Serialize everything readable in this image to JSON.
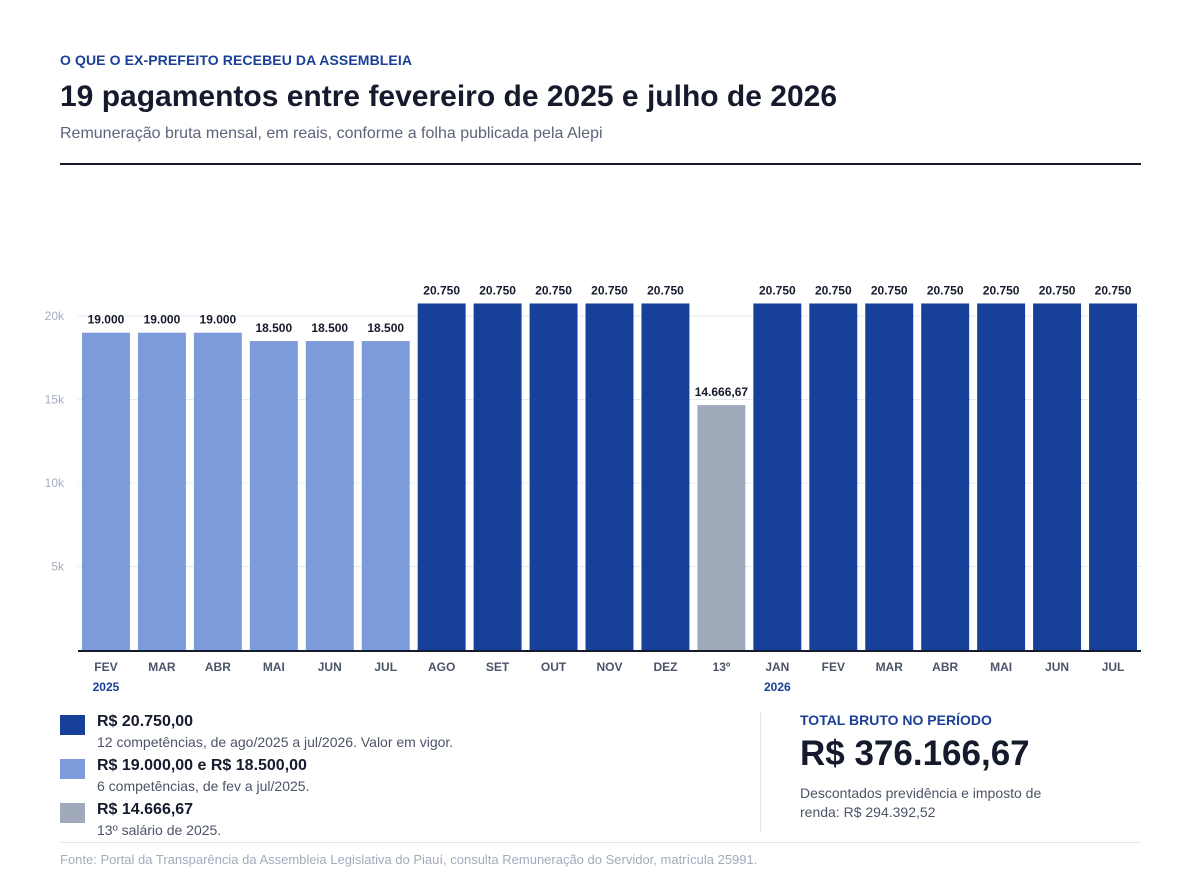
{
  "header": {
    "kicker": "O QUE O EX-PREFEITO RECEBEU DA ASSEMBLEIA",
    "title": "19 pagamentos entre fevereiro de 2025 e julho de 2026",
    "subtitle": "Remuneração bruta mensal, em reais, conforme a folha publicada pela Alepi"
  },
  "chart_data": {
    "type": "bar",
    "categories": [
      "FEV",
      "MAR",
      "ABR",
      "MAI",
      "JUN",
      "JUL",
      "AGO",
      "SET",
      "OUT",
      "NOV",
      "DEZ",
      "13º",
      "JAN",
      "FEV",
      "MAR",
      "ABR",
      "MAI",
      "JUN",
      "JUL"
    ],
    "values": [
      19000,
      19000,
      19000,
      18500,
      18500,
      18500,
      20750,
      20750,
      20750,
      20750,
      20750,
      14666.67,
      20750,
      20750,
      20750,
      20750,
      20750,
      20750,
      20750
    ],
    "value_labels": [
      "19.000",
      "19.000",
      "19.000",
      "18.500",
      "18.500",
      "18.500",
      "20.750",
      "20.750",
      "20.750",
      "20.750",
      "20.750",
      "14.666,67",
      "20.750",
      "20.750",
      "20.750",
      "20.750",
      "20.750",
      "20.750",
      "20.750"
    ],
    "bar_groups": [
      "light",
      "light",
      "light",
      "light",
      "light",
      "light",
      "dark",
      "dark",
      "dark",
      "dark",
      "dark",
      "gray",
      "dark",
      "dark",
      "dark",
      "dark",
      "dark",
      "dark",
      "dark"
    ],
    "year_labels": [
      {
        "index": 0,
        "label": "2025"
      },
      {
        "index": 12,
        "label": "2026"
      }
    ],
    "yticks": [
      5000,
      10000,
      15000,
      20000
    ],
    "ytick_labels": [
      "5k",
      "10k",
      "15k",
      "20k"
    ],
    "ylim": [
      0,
      20000
    ],
    "grid": true,
    "colors": {
      "dark": "#17409a",
      "light": "#7d9ada",
      "gray": "#a0aaba"
    }
  },
  "legend": [
    {
      "title": "R$ 20.750,00",
      "desc": "12 competências, de ago/2025 a jul/2026. Valor em vigor.",
      "color": "#17409a"
    },
    {
      "title": "R$ 19.000,00 e R$ 18.500,00",
      "desc": "6 competências, de fev a jul/2025.",
      "color": "#7d9ada"
    },
    {
      "title": "R$ 14.666,67",
      "desc": "13º salário de 2025.",
      "color": "#a0aaba"
    }
  ],
  "total": {
    "label": "TOTAL BRUTO NO PERÍODO",
    "value": "R$ 376.166,67",
    "note": "Descontados previdência e imposto de renda: R$ 294.392,52"
  },
  "source": "Fonte: Portal da Transparência da Assembleia Legislativa do Piauí, consulta Remuneração do Servidor, matrícula 25991."
}
